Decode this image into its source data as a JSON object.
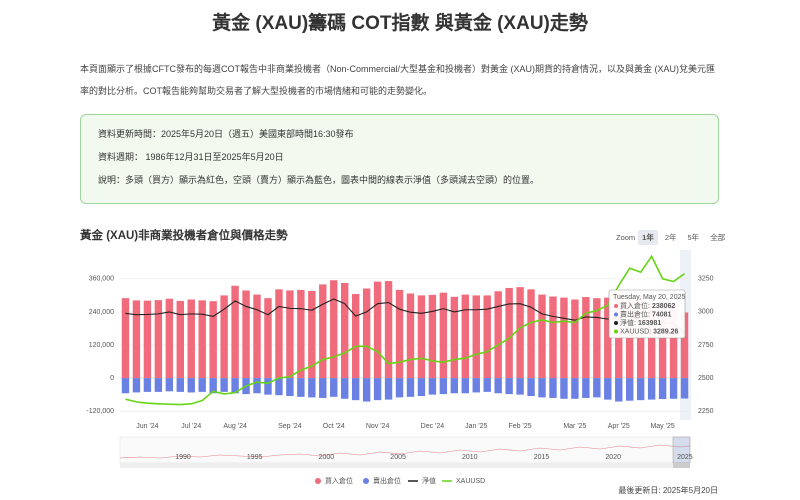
{
  "header": {
    "title": "黃金 (XAU)籌碼 COT指數 與黃金 (XAU)走勢"
  },
  "intro": "本頁面顯示了根據CFTC發布的每週COT報告中非商業投機者（Non-Commercial/大型基金和投機者）對黃金 (XAU)期貨的持倉情況，以及與黃金 (XAU)兌美元匯率的對比分析。COT報告能夠幫助交易者了解大型投機者的市場情緒和可能的走勢變化。",
  "info": [
    "資料更新時間：2025年5月20日（週五）美國東部時間16:30發布",
    "資料週期： 1986年12月31日至2025年5月20日",
    "說明：多頭（買方）顯示為紅色，空頭（賣方）顯示為藍色，圖表中間的線表示淨值（多頭減去空頭）的位置。"
  ],
  "chart_data": {
    "type": "bar",
    "title": "黃金 (XAU)非商業投機者倉位與價格走勢",
    "zoom": {
      "label": "Zoom",
      "buttons": [
        "1年",
        "2年",
        "5年",
        "全部"
      ],
      "active": "1年"
    },
    "categories": [
      null,
      null,
      "Jun '24",
      null,
      null,
      null,
      "Jul '24",
      null,
      null,
      null,
      "Aug '24",
      null,
      null,
      null,
      null,
      "Sep '24",
      null,
      null,
      null,
      "Oct '24",
      null,
      null,
      null,
      "Nov '24",
      null,
      null,
      null,
      null,
      "Dec '24",
      null,
      null,
      null,
      "Jan '25",
      null,
      null,
      null,
      "Feb '25",
      null,
      null,
      null,
      null,
      "Mar '25",
      null,
      null,
      null,
      "Apr '25",
      null,
      null,
      null,
      "May '25",
      null,
      null
    ],
    "series": [
      {
        "name": "買入倉位",
        "type": "bar",
        "color": "#f06b7b",
        "values": [
          290000,
          282000,
          281000,
          283000,
          288000,
          280000,
          285000,
          282000,
          279000,
          300000,
          335000,
          318000,
          303000,
          290000,
          322000,
          318000,
          320000,
          316000,
          340000,
          355000,
          345000,
          305000,
          325000,
          350000,
          352000,
          320000,
          307000,
          300000,
          302000,
          310000,
          295000,
          303000,
          300000,
          300000,
          315000,
          327000,
          330000,
          322000,
          303000,
          296000,
          292000,
          285000,
          294000,
          290000,
          292000,
          302000,
          290000,
          300000,
          270000,
          278000,
          274000,
          238062
        ]
      },
      {
        "name": "賣出倉位",
        "type": "bar",
        "color": "#6b80e3",
        "values": [
          -55000,
          -52000,
          -50000,
          -50000,
          -48000,
          -50000,
          -52000,
          -50000,
          -55000,
          -50000,
          -55000,
          -58000,
          -55000,
          -60000,
          -62000,
          -65000,
          -68000,
          -70000,
          -72000,
          -68000,
          -75000,
          -80000,
          -85000,
          -80000,
          -78000,
          -70000,
          -68000,
          -65000,
          -60000,
          -58000,
          -55000,
          -55000,
          -52000,
          -50000,
          -55000,
          -58000,
          -60000,
          -65000,
          -70000,
          -72000,
          -75000,
          -75000,
          -72000,
          -70000,
          -78000,
          -85000,
          -82000,
          -80000,
          -78000,
          -76000,
          -75000,
          -74081
        ]
      },
      {
        "name": "淨值",
        "type": "line",
        "color": "#222222",
        "values": [
          235000,
          230000,
          231000,
          233000,
          240000,
          230000,
          233000,
          232000,
          224000,
          250000,
          280000,
          260000,
          248000,
          230000,
          260000,
          253000,
          252000,
          246000,
          268000,
          287000,
          270000,
          225000,
          240000,
          270000,
          274000,
          250000,
          239000,
          235000,
          242000,
          252000,
          240000,
          248000,
          248000,
          250000,
          260000,
          269000,
          270000,
          257000,
          233000,
          224000,
          217000,
          210000,
          222000,
          220000,
          214000,
          217000,
          208000,
          220000,
          192000,
          202000,
          199000,
          163981
        ]
      },
      {
        "name": "XAUUSD",
        "type": "line",
        "axis": "y2",
        "color": "#66d414",
        "values": [
          2340,
          2320,
          2310,
          2305,
          2302,
          2300,
          2305,
          2330,
          2400,
          2380,
          2390,
          2440,
          2470,
          2460,
          2500,
          2510,
          2560,
          2590,
          2640,
          2660,
          2690,
          2740,
          2740,
          2700,
          2610,
          2620,
          2640,
          2650,
          2630,
          2620,
          2640,
          2650,
          2680,
          2700,
          2750,
          2800,
          2880,
          2920,
          2940,
          2920,
          2930,
          2920,
          2990,
          3010,
          3050,
          3200,
          3330,
          3300,
          3420,
          3250,
          3230,
          3289.26
        ]
      }
    ],
    "ylim": [
      -152000,
      472000
    ],
    "yticks": [
      {
        "value": -120000,
        "label": "-120,000"
      },
      0,
      {
        "value": 120000,
        "label": "120,000"
      },
      {
        "value": 240000,
        "label": "240,000"
      },
      {
        "value": 360000,
        "label": "360,000"
      }
    ],
    "y2lim": [
      2183,
      3483
    ],
    "y2ticks": [
      2250,
      2500,
      2750,
      3000,
      3250
    ],
    "grid": true,
    "tooltip": {
      "date": "Tuesday, May 20, 2025",
      "items": [
        {
          "label": "買入倉位:",
          "value": 238062,
          "color": "#f06b7b"
        },
        {
          "label": "賣出倉位:",
          "value": 74081,
          "color": "#6b80e3"
        },
        {
          "label": "淨值:",
          "value": 163981,
          "color": "#222222"
        },
        {
          "label": "XAUUSD:",
          "value": 3289.26,
          "color": "#66d414"
        }
      ]
    },
    "navigator": {
      "labels": [
        "1990",
        "1995",
        "2000",
        "2005",
        "2010",
        "2015",
        "2020",
        "2025"
      ]
    }
  },
  "footer": "最後更新日: 2025年5月20日"
}
